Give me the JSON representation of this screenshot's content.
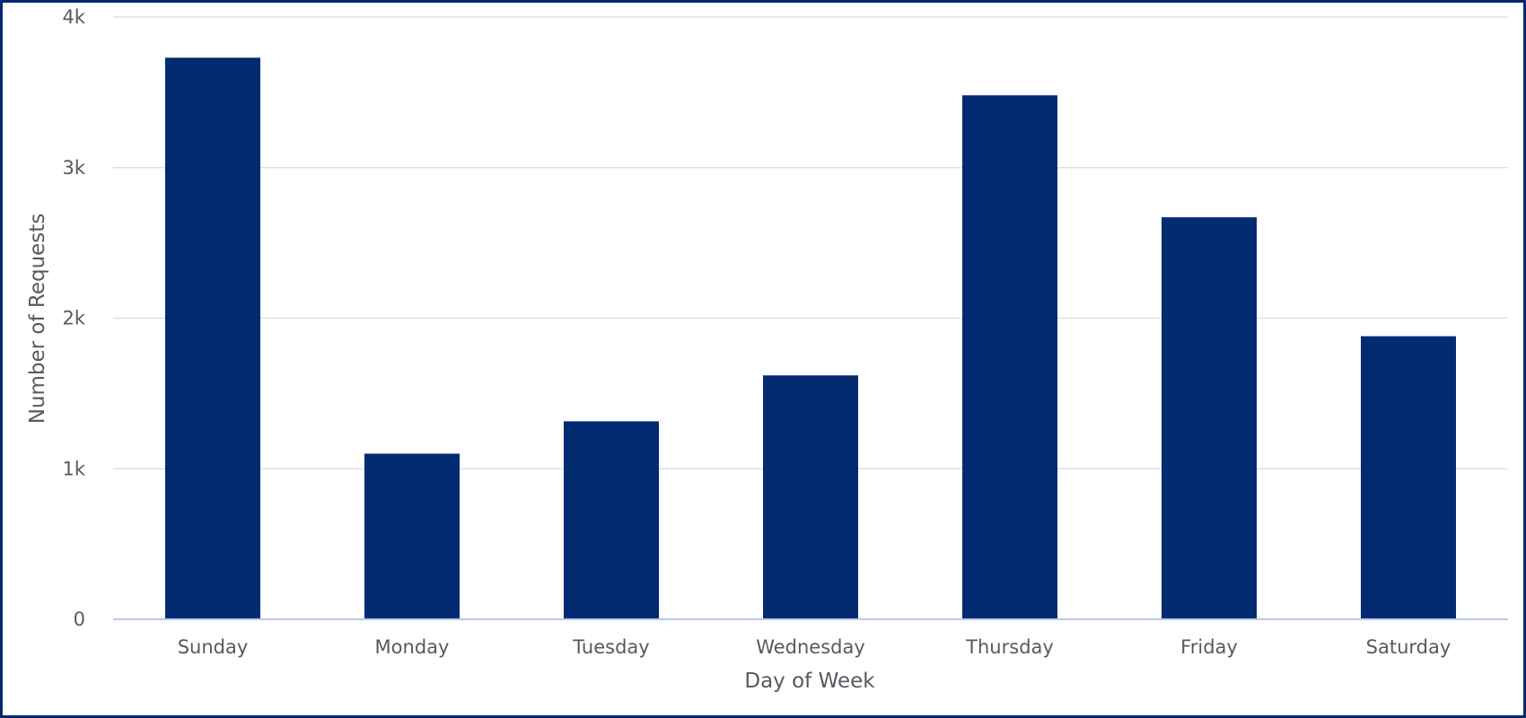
{
  "chart_data": {
    "type": "bar",
    "categories": [
      "Sunday",
      "Monday",
      "Tuesday",
      "Wednesday",
      "Thursday",
      "Friday",
      "Saturday"
    ],
    "values": [
      3730,
      1100,
      1315,
      1620,
      3480,
      2670,
      1880
    ],
    "xlabel": "Day of Week",
    "ylabel": "Number of Requests",
    "ylim": [
      0,
      4000
    ],
    "yticks": [
      0,
      1000,
      2000,
      3000,
      4000
    ],
    "ytick_labels": [
      "0",
      "1k",
      "2k",
      "3k",
      "4k"
    ],
    "grid": true,
    "legend": "none",
    "colors": {
      "bar": "#022b71",
      "grid": "#dde0e6",
      "baseline": "#b7c8e8",
      "frame": "#042a6e",
      "text": "#555a60"
    }
  }
}
